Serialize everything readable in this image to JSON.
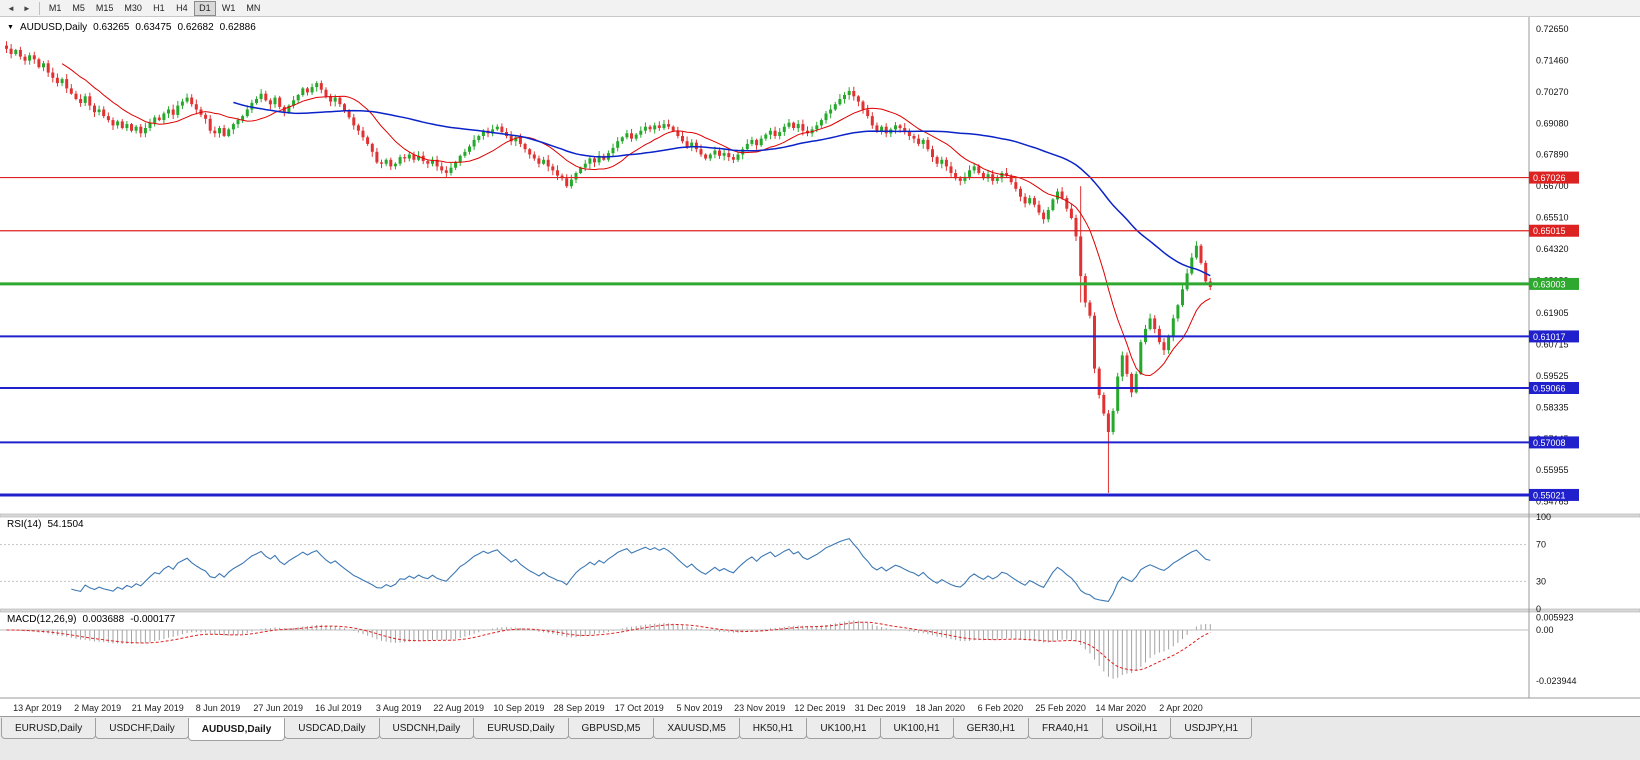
{
  "toolbar": {
    "timeframes": [
      "M1",
      "M5",
      "M15",
      "M30",
      "H1",
      "H4",
      "D1",
      "W1",
      "MN"
    ],
    "active_timeframe": "D1"
  },
  "header": {
    "symbol": "AUDUSD,Daily",
    "open": "0.63265",
    "high": "0.63475",
    "low": "0.62682",
    "close": "0.62886"
  },
  "indicators": {
    "rsi": {
      "label": "RSI(14)",
      "value": "54.1504",
      "levels": [
        "100",
        "70",
        "30",
        "0"
      ],
      "line_color": "#3c78b4"
    },
    "macd": {
      "label": "MACD(12,26,9)",
      "value_main": "0.003688",
      "value_signal": "-0.000177",
      "axis": [
        "0.005923",
        "0.00",
        "-0.023944"
      ],
      "hist_color": "#a3a3a3",
      "signal_color": "#e02020"
    }
  },
  "price_axis": [
    "0.72650",
    "0.71460",
    "0.70270",
    "0.69080",
    "0.67890",
    "0.66700",
    "0.65510",
    "0.64320",
    "0.63130",
    "0.61905",
    "0.60715",
    "0.59525",
    "0.58335",
    "0.57145",
    "0.55955",
    "0.54765"
  ],
  "hlines": [
    {
      "value": 0.67026,
      "label": "0.67026",
      "color": "#dd2222",
      "width": 1.2
    },
    {
      "value": 0.65015,
      "label": "0.65015",
      "color": "#dd2222",
      "width": 1.2
    },
    {
      "value": 0.63003,
      "label": "0.63003",
      "color": "#2fa82f",
      "width": 3
    },
    {
      "value": 0.61017,
      "label": "0.61017",
      "color": "#2020cc",
      "width": 2
    },
    {
      "value": 0.59066,
      "label": "0.59066",
      "color": "#2020cc",
      "width": 2
    },
    {
      "value": 0.57008,
      "label": "0.57008",
      "color": "#2020cc",
      "width": 2
    },
    {
      "value": 0.55021,
      "label": "0.55021",
      "color": "#2020cc",
      "width": 3
    }
  ],
  "date_axis": [
    "13 Apr 2019",
    "2 May 2019",
    "21 May 2019",
    "8 Jun 2019",
    "27 Jun 2019",
    "16 Jul 2019",
    "3 Aug 2019",
    "22 Aug 2019",
    "10 Sep 2019",
    "28 Sep 2019",
    "17 Oct 2019",
    "5 Nov 2019",
    "23 Nov 2019",
    "12 Dec 2019",
    "31 Dec 2019",
    "18 Jan 2020",
    "6 Feb 2020",
    "25 Feb 2020",
    "14 Mar 2020",
    "2 Apr 2020"
  ],
  "chart_data": {
    "type": "candlestick",
    "title": "AUDUSD,Daily",
    "symbol": "AUDUSD",
    "timeframe": "Daily",
    "price_range": [
      0.543,
      0.731
    ],
    "bull_color": "#25a82c",
    "bear_color": "#e03232",
    "ma_fast": {
      "period": 13,
      "color": "#e00000"
    },
    "ma_slow": {
      "period": 50,
      "color": "#0a23c8"
    },
    "closes": [
      0.719,
      0.717,
      0.7185,
      0.716,
      0.7145,
      0.7165,
      0.715,
      0.712,
      0.7135,
      0.71,
      0.708,
      0.706,
      0.7075,
      0.704,
      0.702,
      0.7,
      0.6985,
      0.701,
      0.6975,
      0.695,
      0.696,
      0.6935,
      0.692,
      0.69,
      0.6915,
      0.689,
      0.6905,
      0.688,
      0.6895,
      0.687,
      0.689,
      0.691,
      0.693,
      0.692,
      0.6945,
      0.696,
      0.694,
      0.6975,
      0.699,
      0.7005,
      0.698,
      0.696,
      0.694,
      0.6925,
      0.688,
      0.687,
      0.689,
      0.686,
      0.6885,
      0.6905,
      0.692,
      0.6935,
      0.696,
      0.6985,
      0.7,
      0.702,
      0.6995,
      0.698,
      0.7005,
      0.697,
      0.695,
      0.6975,
      0.6995,
      0.7015,
      0.704,
      0.7025,
      0.7045,
      0.706,
      0.7035,
      0.701,
      0.699,
      0.7005,
      0.698,
      0.6955,
      0.693,
      0.69,
      0.688,
      0.6855,
      0.683,
      0.68,
      0.676,
      0.6755,
      0.677,
      0.6745,
      0.6755,
      0.678,
      0.6775,
      0.679,
      0.677,
      0.6785,
      0.6765,
      0.6755,
      0.677,
      0.6745,
      0.673,
      0.672,
      0.674,
      0.676,
      0.6785,
      0.68,
      0.682,
      0.6845,
      0.686,
      0.688,
      0.687,
      0.6885,
      0.6895,
      0.6875,
      0.686,
      0.684,
      0.6855,
      0.683,
      0.681,
      0.679,
      0.6775,
      0.6755,
      0.677,
      0.6745,
      0.673,
      0.671,
      0.67,
      0.667,
      0.6695,
      0.672,
      0.674,
      0.6755,
      0.6775,
      0.676,
      0.6785,
      0.677,
      0.6795,
      0.6815,
      0.684,
      0.6855,
      0.687,
      0.685,
      0.6865,
      0.688,
      0.6895,
      0.6885,
      0.69,
      0.689,
      0.6905,
      0.6895,
      0.688,
      0.686,
      0.684,
      0.682,
      0.6835,
      0.681,
      0.679,
      0.6775,
      0.679,
      0.6805,
      0.6785,
      0.6795,
      0.678,
      0.677,
      0.679,
      0.681,
      0.683,
      0.6845,
      0.6825,
      0.685,
      0.6865,
      0.688,
      0.686,
      0.6875,
      0.6895,
      0.691,
      0.689,
      0.6905,
      0.688,
      0.687,
      0.6885,
      0.69,
      0.692,
      0.6945,
      0.696,
      0.698,
      0.7,
      0.7015,
      0.703,
      0.701,
      0.699,
      0.696,
      0.6935,
      0.69,
      0.688,
      0.6895,
      0.687,
      0.6885,
      0.69,
      0.689,
      0.6875,
      0.686,
      0.685,
      0.683,
      0.6845,
      0.681,
      0.678,
      0.6755,
      0.677,
      0.6745,
      0.672,
      0.67,
      0.669,
      0.6705,
      0.673,
      0.6745,
      0.672,
      0.67,
      0.6715,
      0.669,
      0.67,
      0.672,
      0.671,
      0.6685,
      0.666,
      0.663,
      0.6605,
      0.6625,
      0.66,
      0.657,
      0.6545,
      0.658,
      0.662,
      0.665,
      0.6625,
      0.6585,
      0.655,
      0.648,
      0.633,
      0.623,
      0.618,
      0.598,
      0.588,
      0.581,
      0.574,
      0.582,
      0.595,
      0.603,
      0.596,
      0.589,
      0.596,
      0.608,
      0.613,
      0.617,
      0.613,
      0.608,
      0.605,
      0.61,
      0.617,
      0.622,
      0.628,
      0.634,
      0.64,
      0.6445,
      0.638,
      0.631,
      0.6289
    ],
    "wick_overrides": {
      "0": {
        "high": 0.7218
      },
      "232": {
        "high": 0.667,
        "low": 0.623
      },
      "238": {
        "low": 0.551
      },
      "257": {
        "high": 0.6462
      }
    }
  },
  "tabs": [
    {
      "label": "EURUSD,Daily"
    },
    {
      "label": "USDCHF,Daily"
    },
    {
      "label": "AUDUSD,Daily",
      "active": true
    },
    {
      "label": "USDCAD,Daily"
    },
    {
      "label": "USDCNH,Daily"
    },
    {
      "label": "EURUSD,Daily"
    },
    {
      "label": "GBPUSD,M5"
    },
    {
      "label": "XAUUSD,M5"
    },
    {
      "label": "HK50,H1"
    },
    {
      "label": "UK100,H1"
    },
    {
      "label": "UK100,H1"
    },
    {
      "label": "GER30,H1"
    },
    {
      "label": "FRA40,H1"
    },
    {
      "label": "USOil,H1"
    },
    {
      "label": "USDJPY,H1"
    }
  ]
}
